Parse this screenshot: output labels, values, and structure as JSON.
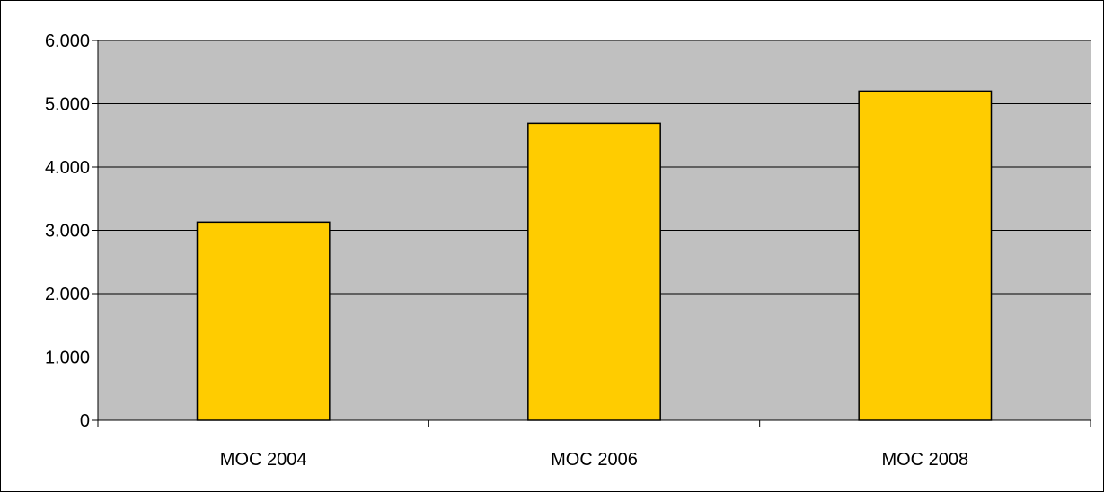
{
  "chart_data": {
    "type": "bar",
    "categories": [
      "MOC 2004",
      "MOC 2006",
      "MOC 2008"
    ],
    "values": [
      3130,
      4690,
      5200
    ],
    "ylim": [
      0,
      6000
    ],
    "yticks": [
      0,
      1000,
      2000,
      3000,
      4000,
      5000,
      6000
    ],
    "ytick_labels": [
      "0",
      "1.000",
      "2.000",
      "3.000",
      "4.000",
      "5.000",
      "6.000"
    ],
    "grid": true,
    "legend": "none",
    "colors": {
      "bar_fill": "#FFCC00",
      "plot_background": "#C0C0C0",
      "gridline": "#000000"
    }
  }
}
